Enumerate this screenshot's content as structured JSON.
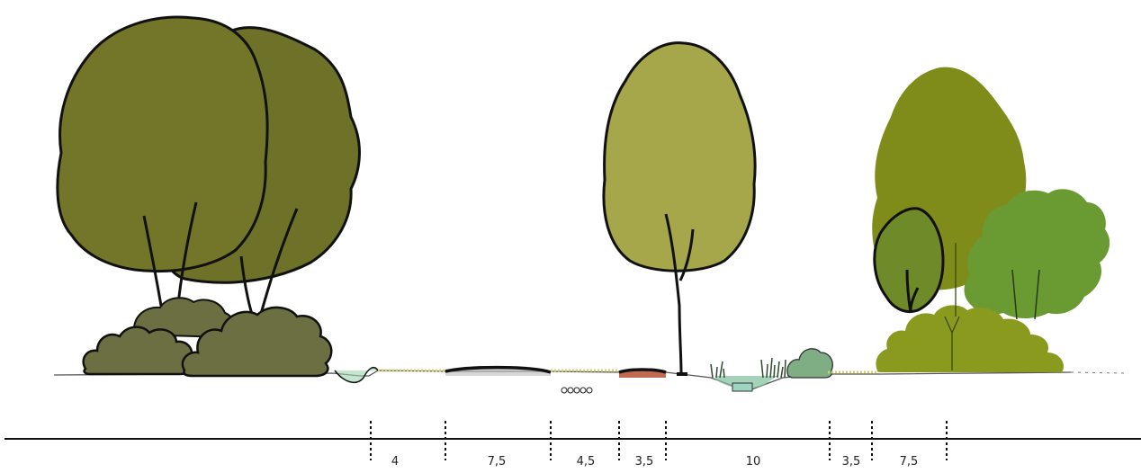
{
  "section": {
    "dimensions": [
      {
        "label": "4"
      },
      {
        "label": "7,5"
      },
      {
        "label": "4,5"
      },
      {
        "label": "3,5"
      },
      {
        "label": "10"
      },
      {
        "label": "3,5"
      },
      {
        "label": "7,5"
      }
    ],
    "colors": {
      "dark_olive": "#6e7228",
      "olive_shrub": "#6b6f42",
      "light_olive": "#a6a64a",
      "green_tree": "#7f8c1a",
      "leaf_green": "#6a9a32",
      "teal_water": "#7fbf9a",
      "path_red": "#c06a50",
      "grass_yellow": "#d8d070"
    }
  }
}
